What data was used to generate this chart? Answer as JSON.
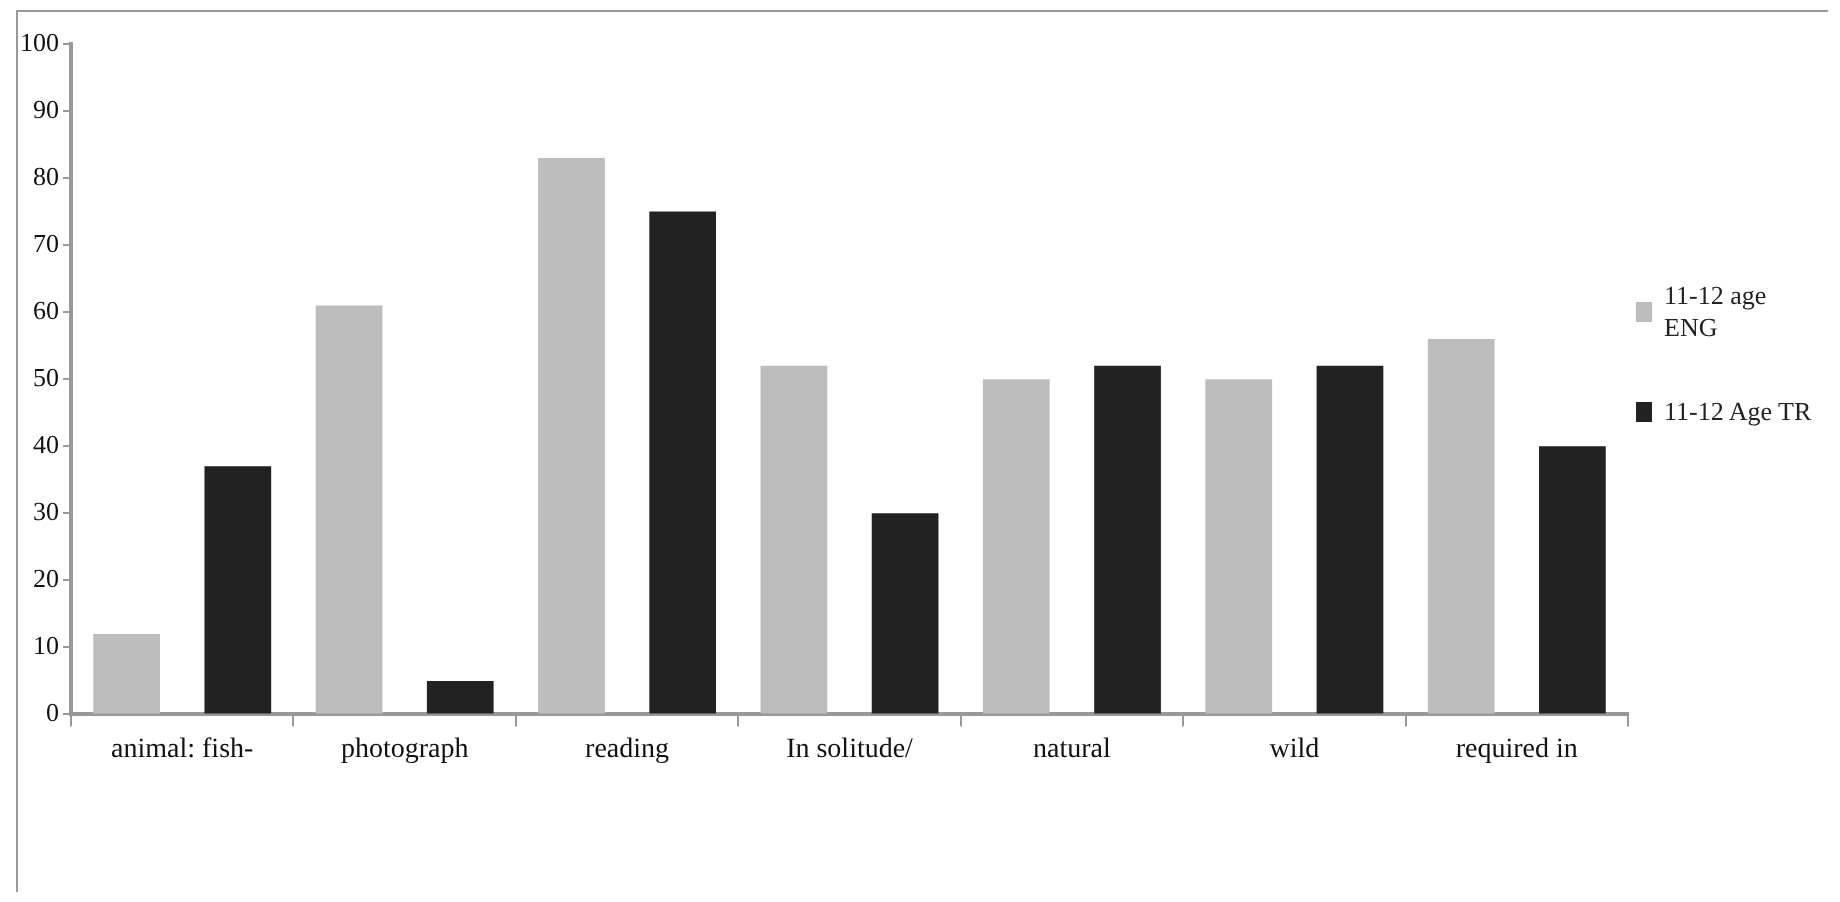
{
  "chart_data": {
    "type": "bar",
    "categories": [
      "animal: fish-",
      "photograph",
      "reading",
      "In solitude/",
      "natural",
      "wild",
      "required in"
    ],
    "series": [
      {
        "name": "11-12 age ENG",
        "color": "#bdbdbd",
        "values": [
          12,
          61,
          83,
          52,
          50,
          50,
          56
        ]
      },
      {
        "name": "11-12 Age TR",
        "color": "#222222",
        "values": [
          37,
          5,
          75,
          30,
          52,
          52,
          40
        ]
      }
    ],
    "ylim": [
      0,
      100
    ],
    "yticks": [
      0,
      10,
      20,
      30,
      40,
      50,
      60,
      70,
      80,
      90,
      100
    ],
    "grid": false,
    "legend": "right"
  }
}
